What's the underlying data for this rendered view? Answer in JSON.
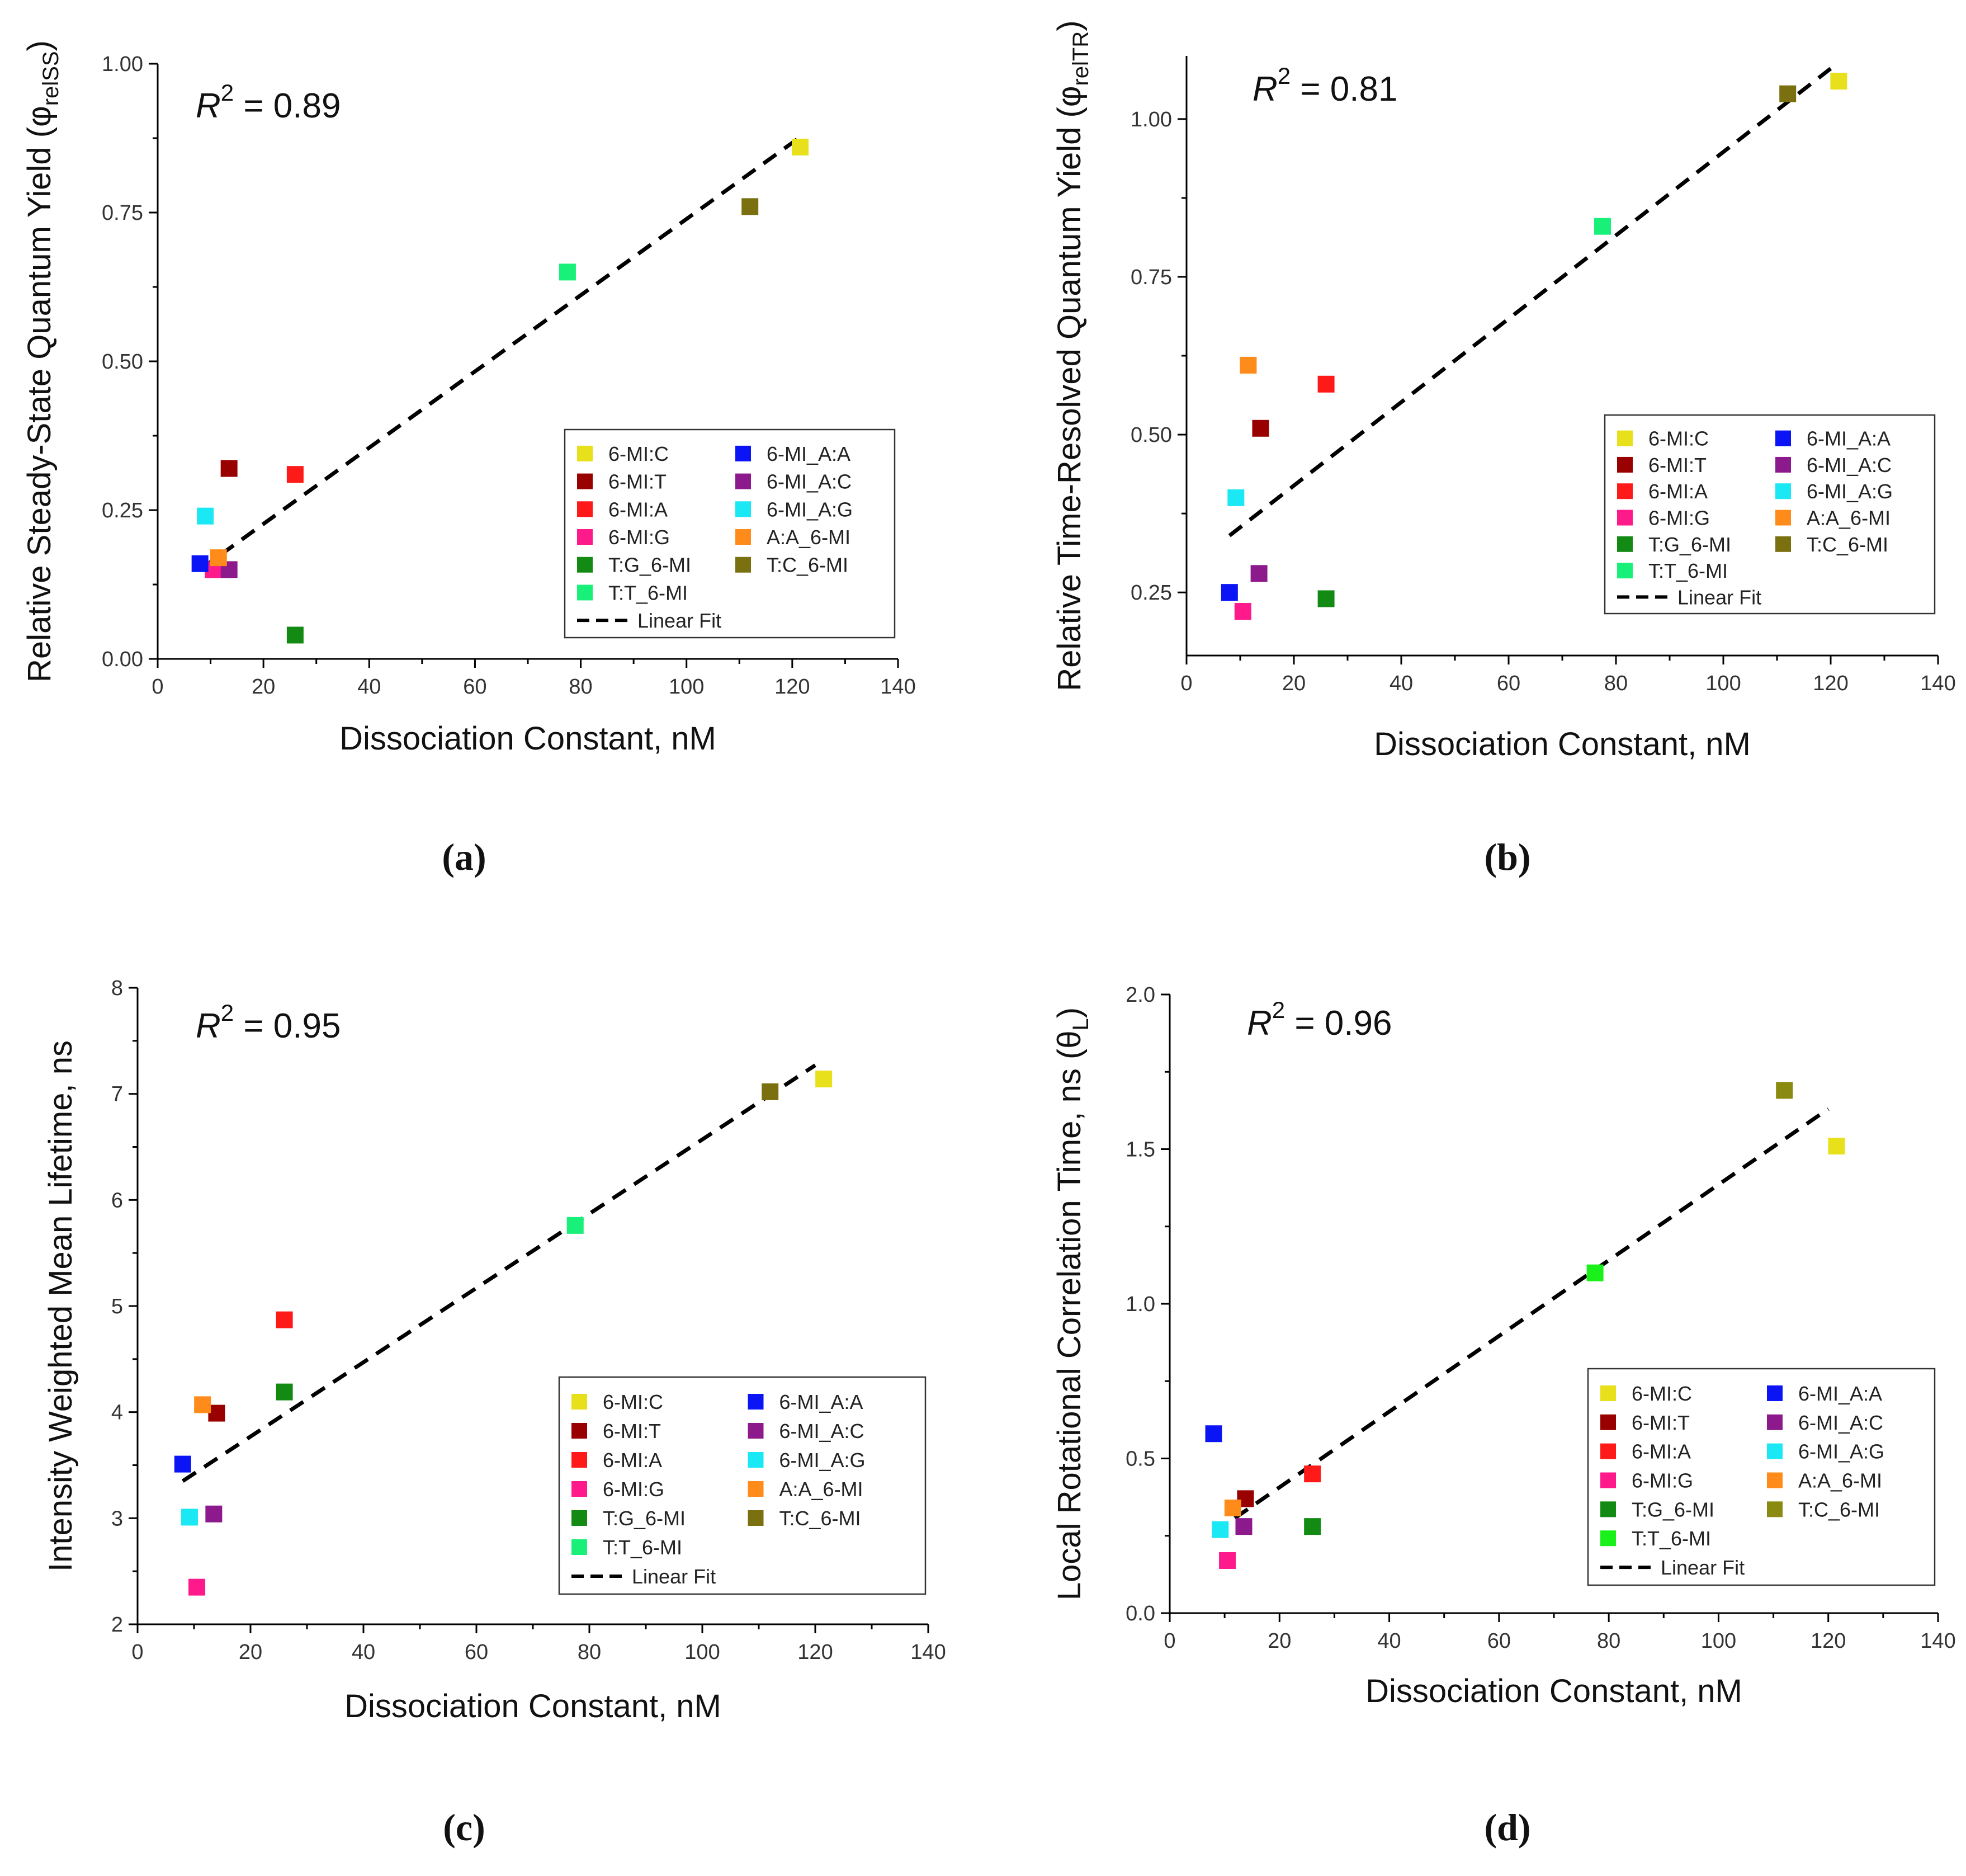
{
  "chart_data": [
    {
      "id": "a",
      "type": "scatter",
      "panel_label": "(a)",
      "xlabel": "Dissociation Constant, nM",
      "ylabel": "Relative Steady-State Quantum Yield (φ",
      "ylabel_sub": "relSS",
      "ylabel_close": ")",
      "r2_label": "R",
      "r2_sup": "2",
      "r2_value": " = 0.89",
      "xlim": [
        0,
        140
      ],
      "ylim": [
        0,
        1.0
      ],
      "xticks": [
        "0",
        "20",
        "40",
        "60",
        "80",
        "100",
        "120",
        "140"
      ],
      "yticks": [
        "0.00",
        "0.25",
        "0.50",
        "0.75",
        "1.00"
      ],
      "fit": {
        "x": [
          8,
          122
        ],
        "y": [
          0.15,
          0.88
        ]
      },
      "legend_fit_label": "Linear Fit",
      "points": [
        {
          "label": "6-MI:C",
          "x": 121.5,
          "y": 0.86,
          "color": "#e8e01a"
        },
        {
          "label": "6-MI:T",
          "x": 13.5,
          "y": 0.32,
          "color": "#990000"
        },
        {
          "label": "6-MI:A",
          "x": 26,
          "y": 0.31,
          "color": "#ff1a1a"
        },
        {
          "label": "6-MI:G",
          "x": 10.5,
          "y": 0.15,
          "color": "#ff1a8c"
        },
        {
          "label": "T:G_6-MI",
          "x": 26,
          "y": 0.04,
          "color": "#138a13"
        },
        {
          "label": "T:T_6-MI",
          "x": 77.5,
          "y": 0.65,
          "color": "#19f07a"
        },
        {
          "label": "6-MI_A:A",
          "x": 8,
          "y": 0.16,
          "color": "#0a14f5"
        },
        {
          "label": "6-MI_A:C",
          "x": 13.5,
          "y": 0.15,
          "color": "#8c1a8c"
        },
        {
          "label": "6-MI_A:G",
          "x": 9,
          "y": 0.24,
          "color": "#1ae8f5"
        },
        {
          "label": "A:A_6-MI",
          "x": 11.5,
          "y": 0.17,
          "color": "#ff8c1a"
        },
        {
          "label": "T:C_6-MI",
          "x": 112,
          "y": 0.76,
          "color": "#7a7010"
        }
      ]
    },
    {
      "id": "b",
      "type": "scatter",
      "panel_label": "(b)",
      "xlabel": "Dissociation Constant, nM",
      "ylabel": "Relative Time-Resolved Quantum Yield (φ",
      "ylabel_sub": "relTR",
      "ylabel_close": ")",
      "r2_label": "R",
      "r2_sup": "2",
      "r2_value": " = 0.81",
      "xlim": [
        0,
        140
      ],
      "ylim": [
        0.15,
        1.1
      ],
      "xticks": [
        "0",
        "20",
        "40",
        "60",
        "80",
        "100",
        "120",
        "140"
      ],
      "yticks": [
        "0.25",
        "0.50",
        "0.75",
        "1.00"
      ],
      "ytick_values": [
        0.25,
        0.5,
        0.75,
        1.0
      ],
      "fit": {
        "x": [
          8,
          120
        ],
        "y": [
          0.34,
          1.08
        ]
      },
      "legend_fit_label": "Linear Fit",
      "points": [
        {
          "label": "6-MI:C",
          "x": 121.5,
          "y": 1.06,
          "color": "#e8e01a"
        },
        {
          "label": "6-MI:T",
          "x": 13.8,
          "y": 0.51,
          "color": "#990000"
        },
        {
          "label": "6-MI:A",
          "x": 26,
          "y": 0.58,
          "color": "#ff1a1a"
        },
        {
          "label": "6-MI:G",
          "x": 10.5,
          "y": 0.22,
          "color": "#ff1a8c"
        },
        {
          "label": "T:G_6-MI",
          "x": 26,
          "y": 0.24,
          "color": "#138a13"
        },
        {
          "label": "T:T_6-MI",
          "x": 77.5,
          "y": 0.83,
          "color": "#19f07a"
        },
        {
          "label": "6-MI_A:A",
          "x": 8,
          "y": 0.25,
          "color": "#0a14f5"
        },
        {
          "label": "6-MI_A:C",
          "x": 13.5,
          "y": 0.28,
          "color": "#8c1a8c"
        },
        {
          "label": "6-MI_A:G",
          "x": 9.2,
          "y": 0.4,
          "color": "#1ae8f5"
        },
        {
          "label": "A:A_6-MI",
          "x": 11.5,
          "y": 0.61,
          "color": "#ff8c1a"
        },
        {
          "label": "T:C_6-MI",
          "x": 112,
          "y": 1.04,
          "color": "#7a7010"
        }
      ]
    },
    {
      "id": "c",
      "type": "scatter",
      "panel_label": "(c)",
      "xlabel": "Dissociation Constant, nM",
      "ylabel": "Intensity Weighted Mean Lifetime, ns",
      "ylabel_sub": "",
      "ylabel_close": "",
      "r2_label": "R",
      "r2_sup": "2",
      "r2_value": " = 0.95",
      "xlim": [
        0,
        140
      ],
      "ylim": [
        2,
        8
      ],
      "xticks": [
        "0",
        "20",
        "40",
        "60",
        "80",
        "100",
        "120",
        "140"
      ],
      "yticks": [
        "2",
        "3",
        "4",
        "5",
        "6",
        "7",
        "8"
      ],
      "fit": {
        "x": [
          8,
          120
        ],
        "y": [
          3.35,
          7.27
        ]
      },
      "legend_fit_label": "Linear Fit",
      "points": [
        {
          "label": "6-MI:C",
          "x": 121.5,
          "y": 7.14,
          "color": "#e8e01a"
        },
        {
          "label": "6-MI:T",
          "x": 14,
          "y": 3.99,
          "color": "#990000"
        },
        {
          "label": "6-MI:A",
          "x": 26,
          "y": 4.87,
          "color": "#ff1a1a"
        },
        {
          "label": "6-MI:G",
          "x": 10.5,
          "y": 2.35,
          "color": "#ff1a8c"
        },
        {
          "label": "T:G_6-MI",
          "x": 26,
          "y": 4.19,
          "color": "#138a13"
        },
        {
          "label": "T:T_6-MI",
          "x": 77.5,
          "y": 5.76,
          "color": "#19f07a"
        },
        {
          "label": "6-MI_A:A",
          "x": 8,
          "y": 3.51,
          "color": "#0a14f5"
        },
        {
          "label": "6-MI_A:C",
          "x": 13.5,
          "y": 3.04,
          "color": "#8c1a8c"
        },
        {
          "label": "6-MI_A:G",
          "x": 9.2,
          "y": 3.01,
          "color": "#1ae8f5"
        },
        {
          "label": "A:A_6-MI",
          "x": 11.5,
          "y": 4.07,
          "color": "#ff8c1a"
        },
        {
          "label": "T:C_6-MI",
          "x": 112,
          "y": 7.02,
          "color": "#7a7010"
        }
      ]
    },
    {
      "id": "d",
      "type": "scatter",
      "panel_label": "(d)",
      "xlabel": "Dissociation Constant, nM",
      "ylabel": "Local Rotational Correlation Time, ns (θ",
      "ylabel_sub": "L",
      "ylabel_close": ")",
      "r2_label": "R",
      "r2_sup": "2",
      "r2_value": " = 0.96",
      "xlim": [
        0,
        140
      ],
      "ylim": [
        0,
        2.0
      ],
      "xticks": [
        "0",
        "20",
        "40",
        "60",
        "80",
        "100",
        "120",
        "140"
      ],
      "yticks": [
        "0.0",
        "0.5",
        "1.0",
        "1.5",
        "2.0"
      ],
      "fit": {
        "x": [
          8,
          120
        ],
        "y": [
          0.26,
          1.63
        ]
      },
      "legend_fit_label": "Linear Fit",
      "points": [
        {
          "label": "6-MI:C",
          "x": 121.5,
          "y": 1.51,
          "color": "#e8e01a"
        },
        {
          "label": "6-MI:T",
          "x": 13.8,
          "y": 0.37,
          "color": "#990000"
        },
        {
          "label": "6-MI:A",
          "x": 26,
          "y": 0.45,
          "color": "#ff1a1a"
        },
        {
          "label": "6-MI:G",
          "x": 10.5,
          "y": 0.17,
          "color": "#ff1a8c"
        },
        {
          "label": "T:G_6-MI",
          "x": 26,
          "y": 0.28,
          "color": "#138a13"
        },
        {
          "label": "T:T_6-MI",
          "x": 77.5,
          "y": 1.1,
          "color": "#1af01a"
        },
        {
          "label": "6-MI_A:A",
          "x": 8,
          "y": 0.58,
          "color": "#0a14f5"
        },
        {
          "label": "6-MI_A:C",
          "x": 13.5,
          "y": 0.28,
          "color": "#8c1a8c"
        },
        {
          "label": "6-MI_A:G",
          "x": 9.2,
          "y": 0.27,
          "color": "#1ae8f5"
        },
        {
          "label": "A:A_6-MI",
          "x": 11.5,
          "y": 0.34,
          "color": "#ff8c1a"
        },
        {
          "label": "T:C_6-MI",
          "x": 112,
          "y": 1.69,
          "color": "#8a8a10"
        }
      ]
    }
  ]
}
